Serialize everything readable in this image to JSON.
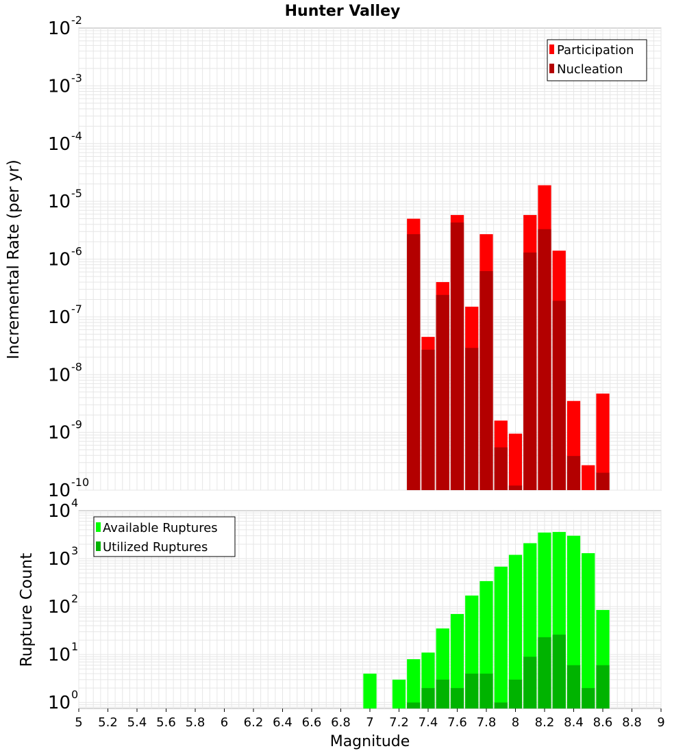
{
  "title": "Hunter Valley",
  "colors": {
    "participation": "#ff0000",
    "nucleation": "#b30000",
    "available": "#00ff00",
    "utilized": "#00b300",
    "grid": "#e6e6e6",
    "border": "#b0b0b0"
  },
  "chart_data": [
    {
      "type": "bar",
      "title": "Hunter Valley",
      "xlabel": "",
      "ylabel": "Incremental Rate (per yr)",
      "yscale": "log",
      "ylim": [
        1e-10,
        0.01
      ],
      "xlim": [
        5,
        9
      ],
      "ytick_bases": [
        "10",
        "10",
        "10",
        "10",
        "10",
        "10",
        "10",
        "10",
        "10"
      ],
      "ytick_exponents": [
        "-10",
        "-9",
        "-8",
        "-7",
        "-6",
        "-5",
        "-4",
        "-3",
        "-2"
      ],
      "grid": true,
      "legend": [
        "Participation",
        "Nucleation"
      ],
      "legend_position": "top-right",
      "x": [
        7.3,
        7.4,
        7.5,
        7.6,
        7.7,
        7.8,
        7.9,
        8.0,
        8.1,
        8.2,
        8.3,
        8.4,
        8.5,
        8.6
      ],
      "series": [
        {
          "name": "Participation",
          "values": [
            5e-06,
            4.5e-08,
            4e-07,
            5.8e-06,
            1.5e-07,
            2.7e-06,
            1.6e-09,
            9.5e-10,
            5.8e-06,
            1.9e-05,
            1.4e-06,
            3.5e-09,
            2.7e-10,
            4.7e-09
          ]
        },
        {
          "name": "Nucleation",
          "values": [
            2.7e-06,
            2.7e-08,
            2.4e-07,
            4.3e-06,
            2.9e-08,
            6.2e-07,
            5.5e-10,
            1.2e-10,
            1.3e-06,
            3.3e-06,
            1.9e-07,
            3.9e-10,
            1e-10,
            2e-10
          ]
        }
      ]
    },
    {
      "type": "bar",
      "title": "",
      "xlabel": "Magnitude",
      "ylabel": "Rupture Count",
      "yscale": "log",
      "ylim": [
        0.75,
        10000
      ],
      "xlim": [
        5,
        9
      ],
      "ytick_bases": [
        "10",
        "10",
        "10",
        "10",
        "10"
      ],
      "ytick_exponents": [
        "0",
        "1",
        "2",
        "3",
        "4"
      ],
      "xticks": [
        "5",
        "5.2",
        "5.4",
        "5.6",
        "5.8",
        "6",
        "6.2",
        "6.4",
        "6.6",
        "6.8",
        "7",
        "7.2",
        "7.4",
        "7.6",
        "7.8",
        "8",
        "8.2",
        "8.4",
        "8.6",
        "8.8",
        "9"
      ],
      "grid": true,
      "legend": [
        "Available Ruptures",
        "Utilized Ruptures"
      ],
      "legend_position": "top-left",
      "x": [
        7.0,
        7.2,
        7.3,
        7.4,
        7.5,
        7.6,
        7.7,
        7.8,
        7.9,
        8.0,
        8.1,
        8.2,
        8.3,
        8.4,
        8.5,
        8.6
      ],
      "series": [
        {
          "name": "Available Ruptures",
          "values": [
            4,
            3,
            8,
            11,
            35,
            70,
            170,
            340,
            680,
            1200,
            2100,
            3500,
            3600,
            3000,
            1300,
            85
          ]
        },
        {
          "name": "Utilized Ruptures",
          "values": [
            0,
            0,
            1,
            2,
            3,
            2,
            4,
            4,
            1,
            3,
            9,
            23,
            26,
            6,
            2,
            6
          ]
        }
      ]
    }
  ]
}
